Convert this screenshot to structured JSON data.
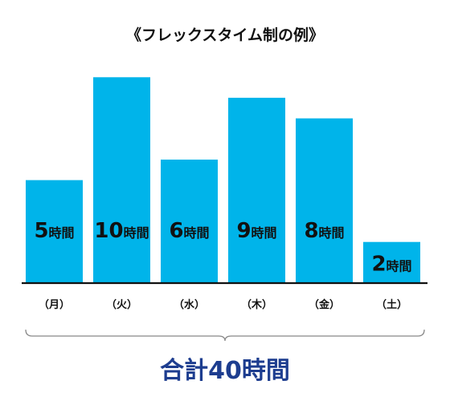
{
  "chart_data": {
    "type": "bar",
    "title": "《フレックスタイム制の例》",
    "categories": [
      "（月）",
      "（火）",
      "（水）",
      "（木）",
      "（金）",
      "（土）"
    ],
    "values": [
      5,
      10,
      6,
      9,
      8,
      2
    ],
    "unit": "時間",
    "total_label": "合計40時間",
    "ylim": [
      0,
      10.4
    ],
    "grid": false,
    "legend": "none"
  },
  "colors": {
    "bar": "#00b4ea",
    "text": "#111111",
    "axis": "#111111",
    "total": "#1d3d8f",
    "brace": "#888888"
  }
}
